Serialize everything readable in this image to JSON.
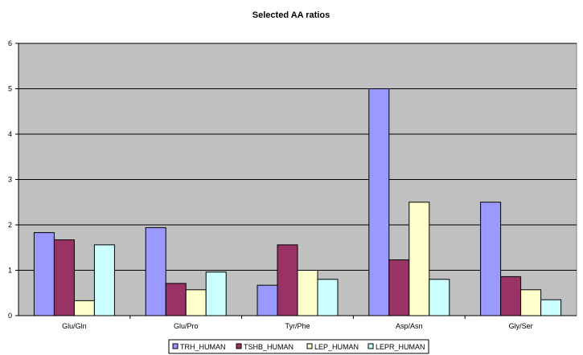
{
  "chart_data": {
    "type": "bar",
    "title": "Selected AA ratios",
    "xlabel": "",
    "ylabel": "",
    "ylim": [
      0,
      6
    ],
    "yticks": [
      0,
      1,
      2,
      3,
      4,
      5,
      6
    ],
    "grid": true,
    "plot_background": "#c0c0c0",
    "legend_position": "bottom",
    "categories": [
      "Glu/Gln",
      "Glu/Pro",
      "Tyr/Phe",
      "Asp/Asn",
      "Gly/Ser"
    ],
    "series": [
      {
        "name": "TRH_HUMAN",
        "color": "#9999ff",
        "values": [
          1.83,
          1.94,
          0.67,
          5.0,
          2.5
        ]
      },
      {
        "name": "TSHB_HUMAN",
        "color": "#993366",
        "values": [
          1.67,
          0.71,
          1.56,
          1.23,
          0.86
        ]
      },
      {
        "name": "LEP_HUMAN",
        "color": "#ffffcc",
        "values": [
          0.33,
          0.57,
          1.0,
          2.5,
          0.57
        ]
      },
      {
        "name": "LEPR_HUMAN",
        "color": "#ccffff",
        "values": [
          1.56,
          0.96,
          0.8,
          0.8,
          0.35
        ]
      }
    ]
  }
}
